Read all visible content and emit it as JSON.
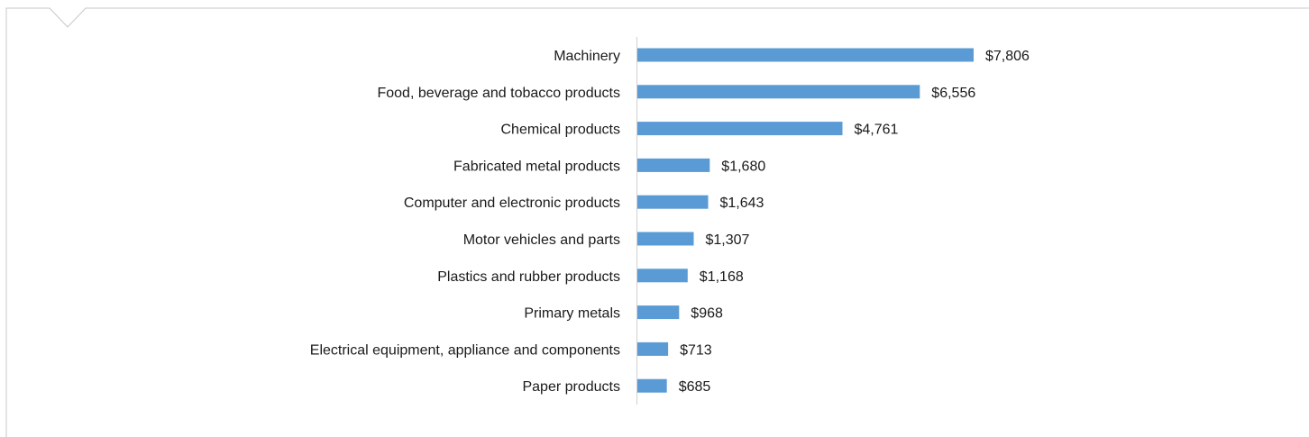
{
  "chart_data": {
    "type": "bar",
    "orientation": "horizontal",
    "categories": [
      "Machinery",
      "Food, beverage and tobacco products",
      "Chemical products",
      "Fabricated metal products",
      "Computer and electronic products",
      "Motor vehicles and parts",
      "Plastics and rubber products",
      "Primary metals",
      "Electrical equipment, appliance and components",
      "Paper products"
    ],
    "values": [
      7806,
      6556,
      4761,
      1680,
      1643,
      1307,
      1168,
      968,
      713,
      685
    ],
    "value_labels": [
      "$7,806",
      "$6,556",
      "$4,761",
      "$1,680",
      "$1,643",
      "$1,307",
      "$1,168",
      "$968",
      "$713",
      "$685"
    ],
    "title": "",
    "xlabel": "",
    "ylabel": "",
    "xlim": [
      0,
      7806
    ],
    "grid": false,
    "legend": "none",
    "colors": {
      "bar": "#5b9bd5",
      "axis": "#d0d0d0",
      "frame": "#c8c8c8",
      "text": "#1a1a1a"
    }
  }
}
